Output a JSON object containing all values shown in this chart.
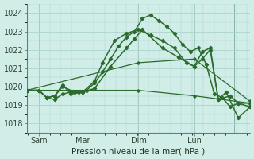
{
  "xlabel": "Pression niveau de la mer( hPa )",
  "bg_color": "#d0ede8",
  "grid_color": "#aad4cc",
  "line_color": "#2d6a2d",
  "ylim": [
    1017.5,
    1024.5
  ],
  "xlim": [
    0,
    56
  ],
  "yticks": [
    1018,
    1019,
    1020,
    1021,
    1022,
    1023,
    1024
  ],
  "xtick_positions": [
    3,
    14,
    28,
    42,
    52
  ],
  "xtick_labels": [
    "Sam",
    "Mar",
    "Dim",
    "Lun",
    ""
  ],
  "vline_positions": [
    3,
    14,
    28,
    42,
    52
  ],
  "lines": [
    {
      "x": [
        0,
        3,
        5,
        7,
        9,
        11,
        13,
        15,
        17,
        19,
        21,
        23,
        25,
        27,
        29,
        31,
        33,
        35,
        37,
        39,
        41,
        43,
        45,
        47,
        49,
        51,
        53,
        56
      ],
      "y": [
        1019.8,
        1019.8,
        1019.4,
        1019.3,
        1019.6,
        1019.7,
        1019.7,
        1019.8,
        1020.2,
        1020.8,
        1021.5,
        1022.2,
        1022.7,
        1023.0,
        1023.7,
        1023.9,
        1023.6,
        1023.3,
        1022.9,
        1022.3,
        1021.9,
        1022.1,
        1021.2,
        1019.6,
        1019.4,
        1018.9,
        1019.1,
        1018.9
      ],
      "marker": "D",
      "markersize": 2.2,
      "linewidth": 1.1,
      "linestyle": "-"
    },
    {
      "x": [
        0,
        3,
        5,
        7,
        9,
        11,
        14,
        17,
        19,
        22,
        25,
        28,
        31,
        34,
        37,
        40,
        42,
        44,
        46,
        48,
        51,
        53,
        56
      ],
      "y": [
        1019.8,
        1019.8,
        1019.4,
        1019.5,
        1020.1,
        1019.6,
        1019.7,
        1020.3,
        1021.3,
        1022.5,
        1022.9,
        1023.1,
        1022.8,
        1022.5,
        1022.1,
        1021.3,
        1021.1,
        1021.5,
        1022.0,
        1019.3,
        1019.5,
        1019.1,
        1019.1
      ],
      "marker": "D",
      "markersize": 2.2,
      "linewidth": 1.1,
      "linestyle": "-"
    },
    {
      "x": [
        0,
        3,
        5,
        7,
        9,
        12,
        14,
        17,
        21,
        25,
        27,
        29,
        34,
        38,
        42,
        44,
        46,
        48,
        50,
        53,
        56
      ],
      "y": [
        1019.8,
        1019.8,
        1019.4,
        1019.5,
        1020.0,
        1019.7,
        1019.7,
        1019.9,
        1021.1,
        1022.1,
        1022.6,
        1023.1,
        1022.1,
        1021.6,
        1021.1,
        1021.9,
        1022.1,
        1019.3,
        1019.7,
        1018.3,
        1018.9
      ],
      "marker": "D",
      "markersize": 2.2,
      "linewidth": 1.1,
      "linestyle": "-"
    },
    {
      "x": [
        0,
        28,
        42,
        56
      ],
      "y": [
        1019.8,
        1021.3,
        1021.5,
        1019.2
      ],
      "marker": "D",
      "markersize": 1.8,
      "linewidth": 0.9,
      "linestyle": "-"
    },
    {
      "x": [
        0,
        28,
        42,
        56
      ],
      "y": [
        1019.8,
        1019.8,
        1019.5,
        1019.1
      ],
      "marker": "D",
      "markersize": 1.8,
      "linewidth": 0.9,
      "linestyle": "-"
    }
  ]
}
